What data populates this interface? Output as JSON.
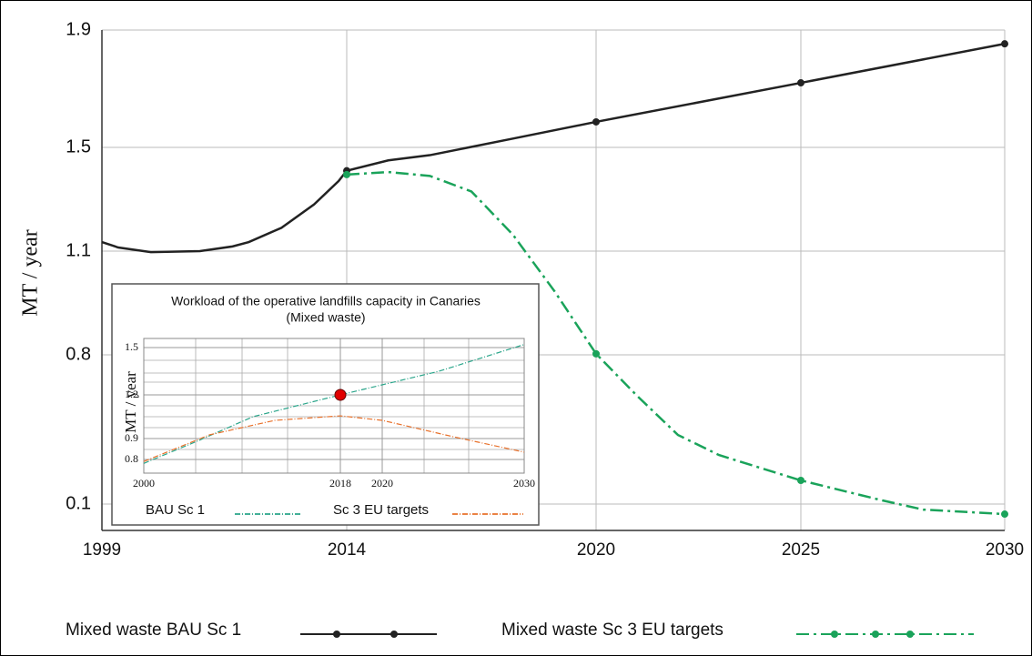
{
  "chart_data": [
    {
      "type": "line",
      "ylabel": "MT / year",
      "xlim": [
        1999,
        2030
      ],
      "xticks": [
        1999,
        2014,
        2020,
        2025,
        2030
      ],
      "ylim": [
        0,
        1.9
      ],
      "yticks": [
        0.1,
        0.8,
        1.1,
        1.5,
        1.9
      ],
      "grid": true,
      "series": [
        {
          "name": "Mixed waste BAU Sc 1",
          "color": "#222222",
          "style": "solid",
          "x": [
            1999,
            2000,
            2002,
            2005,
            2007,
            2008,
            2010,
            2012,
            2013.5,
            2014,
            2015,
            2016,
            2018,
            2020,
            2025,
            2030
          ],
          "values": [
            1.135,
            1.114,
            1.097,
            1.1,
            1.118,
            1.135,
            1.19,
            1.28,
            1.37,
            1.41,
            1.45,
            1.47,
            1.53,
            1.587,
            1.72,
            1.853
          ]
        },
        {
          "name": "Mixed waste Sc 3 EU targets",
          "color": "#1aa35a",
          "style": "dashdot",
          "x": [
            2014,
            2015,
            2016,
            2017,
            2018,
            2019,
            2020,
            2021,
            2022,
            2023,
            2025,
            2027,
            2028,
            2030
          ],
          "values": [
            1.395,
            1.405,
            1.39,
            1.33,
            1.163,
            0.984,
            0.803,
            0.608,
            0.424,
            0.33,
            0.211,
            0.117,
            0.079,
            0.062
          ]
        }
      ]
    },
    {
      "type": "line",
      "title": "Workload of the operative landfills capacity in Canaries",
      "subtitle": "(Mixed waste)",
      "ylabel": "MT / year",
      "xlim": [
        2000,
        2030
      ],
      "xticks": [
        2000,
        2018,
        2020,
        2030
      ],
      "ylim": [
        0.73,
        1.56
      ],
      "yticks": [
        0.8,
        0.9,
        1.2,
        1.5
      ],
      "grid": true,
      "highlight": {
        "x": 2018,
        "y": 1.2,
        "color": "#e00000"
      },
      "series": [
        {
          "name": "BAU Sc 1",
          "color": "#2aa58a",
          "style": "dashdot",
          "x": [
            2000,
            2005,
            2010,
            2018,
            2024,
            2030
          ],
          "values": [
            0.78,
            0.89,
            1.05,
            1.2,
            1.35,
            1.52
          ]
        },
        {
          "name": "Sc 3 EU targets",
          "color": "#e8702a",
          "style": "dashdot",
          "x": [
            2000,
            2006,
            2012,
            2018,
            2020,
            2025,
            2030
          ],
          "values": [
            0.79,
            0.925,
            1.025,
            1.056,
            1.025,
            0.9125,
            0.835
          ]
        }
      ]
    }
  ]
}
